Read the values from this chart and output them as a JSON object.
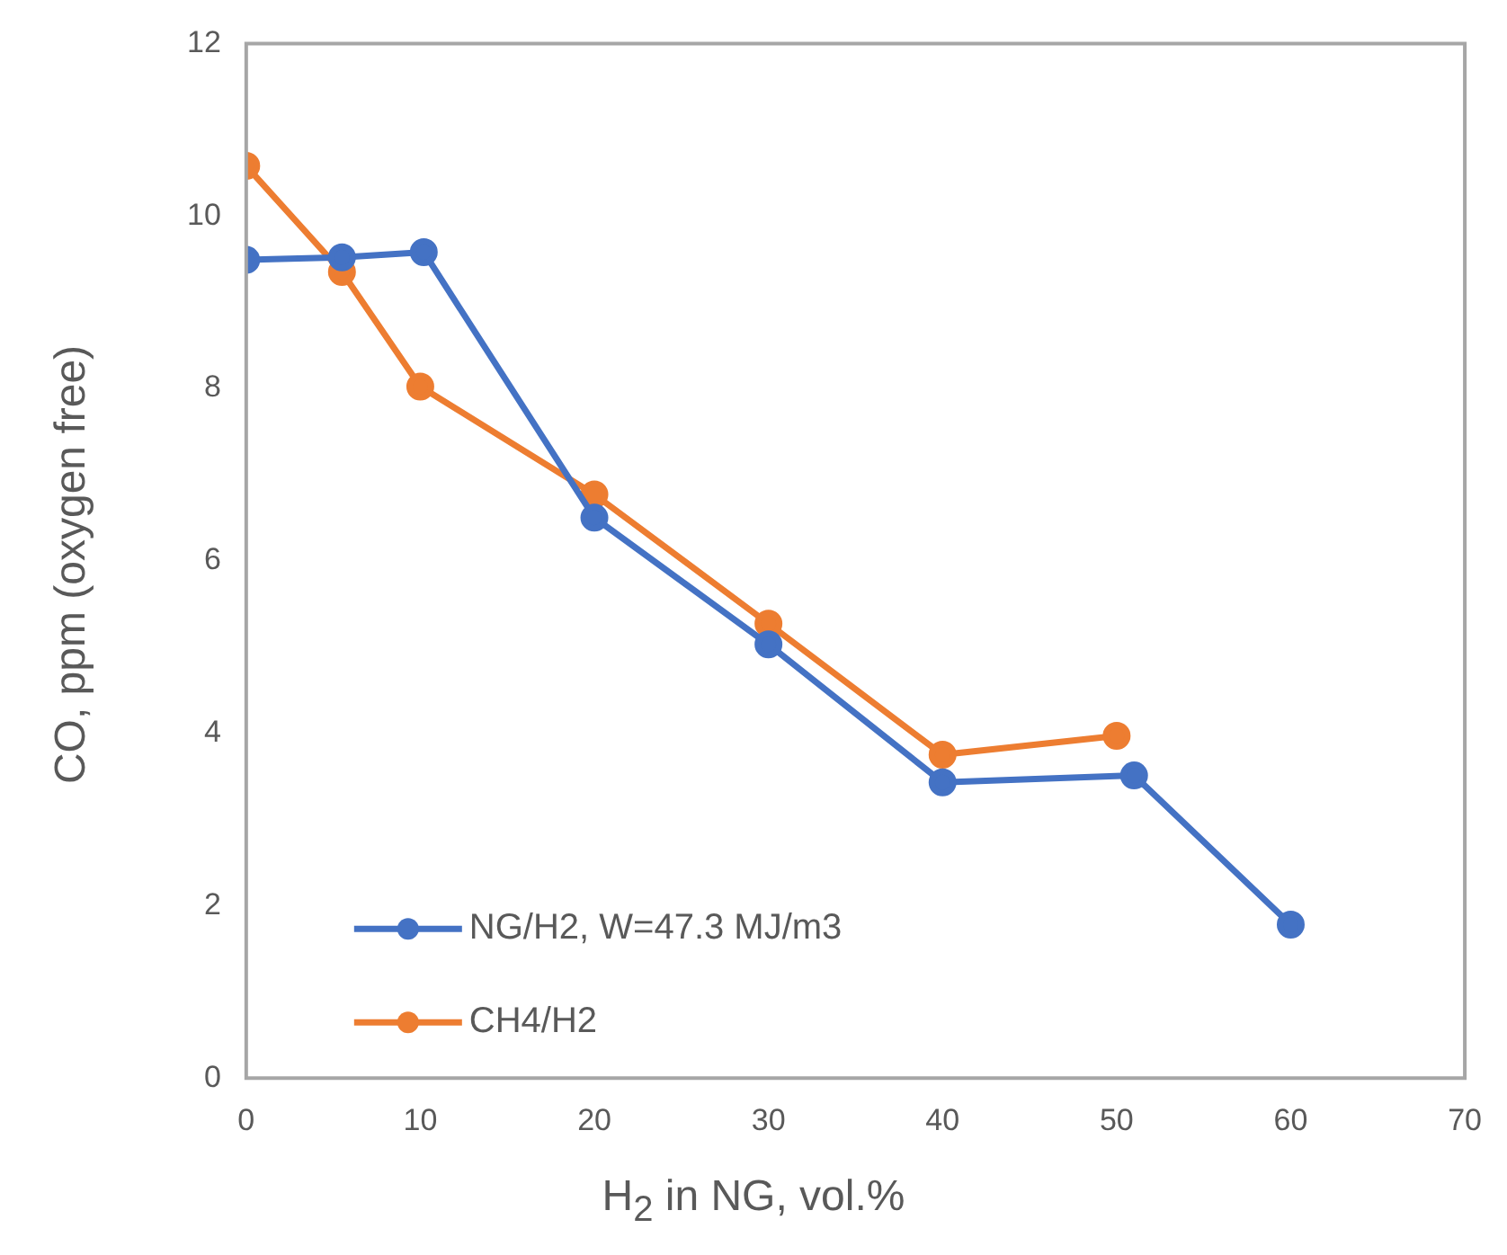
{
  "chart_data": {
    "type": "line",
    "xlabel": "H$_{2}$ in NG, vol.%",
    "ylabel": "CO, ppm (oxygen free)",
    "xlim": [
      0,
      70
    ],
    "xticks": [
      0,
      10,
      20,
      30,
      40,
      50,
      60,
      70
    ],
    "ylim": [
      0,
      12
    ],
    "yticks": [
      0,
      2,
      4,
      6,
      8,
      10,
      12
    ],
    "grid": false,
    "legend": "bottom left",
    "marker": "circle",
    "line_style": "solid",
    "series": [
      {
        "name": "NG/H2, W=47.3 MJ/m3",
        "color": "#4472c4",
        "x": [
          0,
          5.5,
          10.2,
          20,
          30,
          40,
          51,
          60
        ],
        "values": [
          9.49,
          9.52,
          9.58,
          6.5,
          5.03,
          3.43,
          3.51,
          1.78
        ]
      },
      {
        "name": "CH4/H2",
        "color": "#ed7d31",
        "x": [
          0,
          5.5,
          10,
          20,
          30,
          40,
          50
        ],
        "values": [
          10.58,
          9.35,
          8.02,
          6.77,
          5.27,
          3.75,
          3.97
        ]
      }
    ]
  }
}
